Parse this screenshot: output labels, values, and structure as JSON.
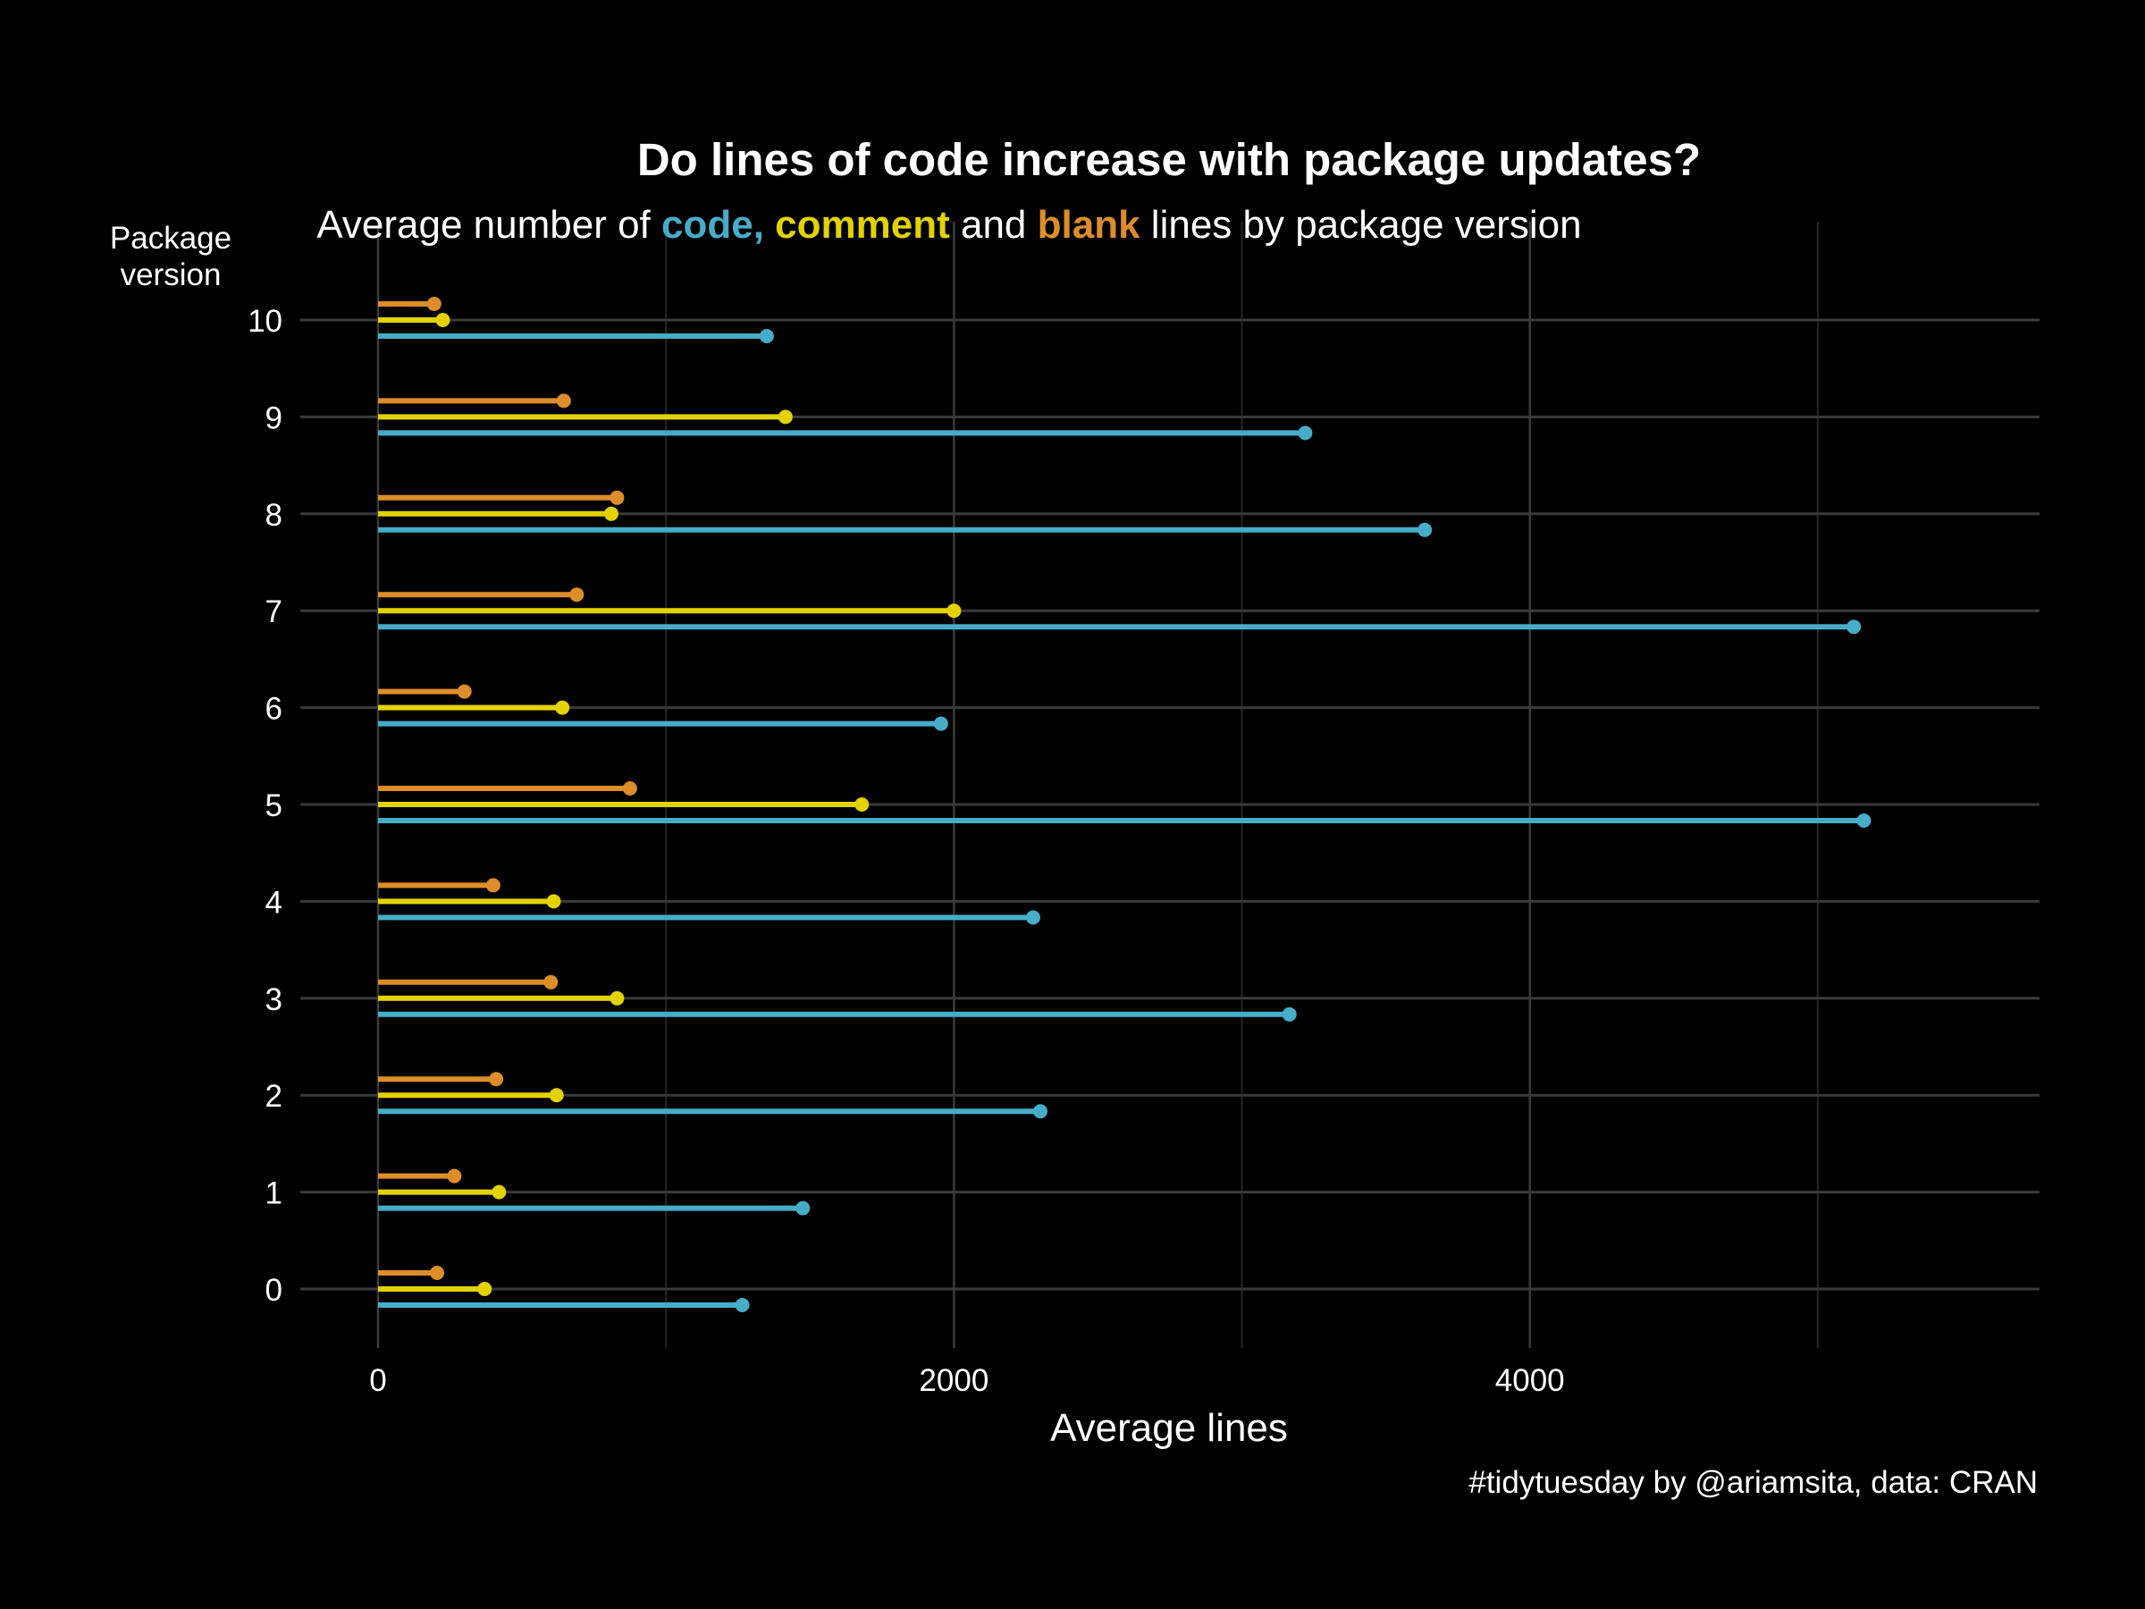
{
  "chart_data": {
    "type": "lollipop",
    "title": "Do lines of code increase with package updates?",
    "subtitle": {
      "prefix": "Average number of",
      "code_word": "code,",
      "comment_word": "comment",
      "and_word": "and",
      "blank_word": "blank",
      "suffix": "lines by package version"
    },
    "ylabel": "Package\nversion",
    "xlabel": "Average lines",
    "caption": "#tidytuesday by @ariamsita, data: CRAN",
    "categories": [
      0,
      1,
      2,
      3,
      4,
      5,
      6,
      7,
      8,
      9,
      10
    ],
    "xlim": [
      -270,
      5770
    ],
    "xticks": [
      0,
      2000,
      4000
    ],
    "x_minor_gridlines": [
      1000,
      3000,
      5000
    ],
    "grid": true,
    "series": [
      {
        "name": "code",
        "color": "#46ACC8",
        "values": [
          1265,
          1475,
          2300,
          3165,
          2275,
          5160,
          1955,
          5125,
          3635,
          3220,
          1350
        ]
      },
      {
        "name": "comment",
        "color": "#E2D200",
        "values": [
          370,
          420,
          620,
          830,
          610,
          1680,
          640,
          2000,
          810,
          1415,
          225
        ]
      },
      {
        "name": "blank",
        "color": "#DD8D29",
        "values": [
          205,
          265,
          410,
          600,
          400,
          875,
          300,
          690,
          830,
          645,
          195
        ]
      }
    ]
  }
}
